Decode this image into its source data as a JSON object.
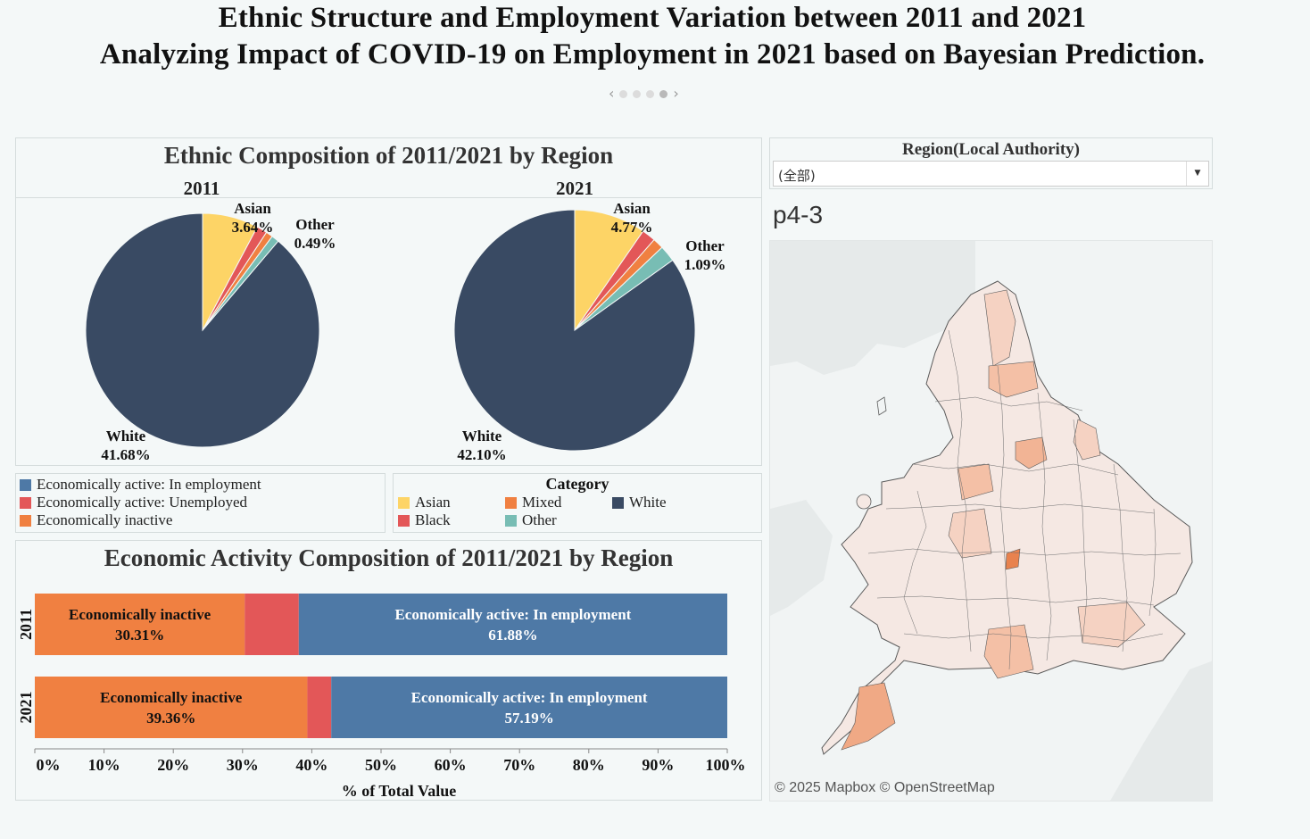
{
  "header": {
    "title_line1": "Ethnic Structure and Employment Variation between 2011 and 2021",
    "title_line2": "Analyzing Impact of COVID-19 on Employment in 2021 based on Bayesian Prediction."
  },
  "pager": {
    "prev_icon": "chevron-left-icon",
    "next_icon": "chevron-right-icon",
    "dots": 4,
    "active": 4
  },
  "colors": {
    "asian": "#fdd466",
    "black": "#e35758",
    "mixed": "#f08041",
    "white": "#394a63",
    "other": "#78bdb4",
    "in_employment": "#4e79a6",
    "unemployed": "#e35758",
    "inactive": "#f08041"
  },
  "pie_section": {
    "title": "Ethnic Composition of 2011/2021 by Region",
    "pies": [
      {
        "year": "2011",
        "slices": [
          {
            "category": "Asian",
            "value": 3.64
          },
          {
            "category": "Black",
            "value": 0.68
          },
          {
            "category": "Mixed",
            "value": 0.45
          },
          {
            "category": "Other",
            "value": 0.49
          },
          {
            "category": "White",
            "value": 41.68
          }
        ],
        "labels": {
          "asian": "Asian",
          "asian_pct": "3.64%",
          "other": "Other",
          "other_pct": "0.49%",
          "white": "White",
          "white_pct": "41.68%"
        }
      },
      {
        "year": "2021",
        "slices": [
          {
            "category": "Asian",
            "value": 4.77
          },
          {
            "category": "Black",
            "value": 0.92
          },
          {
            "category": "Mixed",
            "value": 0.72
          },
          {
            "category": "Other",
            "value": 1.09
          },
          {
            "category": "White",
            "value": 42.1
          }
        ],
        "labels": {
          "asian": "Asian",
          "asian_pct": "4.77%",
          "other": "Other",
          "other_pct": "1.09%",
          "white": "White",
          "white_pct": "42.10%"
        }
      }
    ]
  },
  "legend_econ": [
    {
      "label": "Economically active: In employment",
      "color": "#4e79a6"
    },
    {
      "label": "Economically active: Unemployed",
      "color": "#e35758"
    },
    {
      "label": "Economically inactive",
      "color": "#f08041"
    }
  ],
  "legend_category": {
    "title": "Category",
    "items": [
      {
        "label": "Asian",
        "color": "#fdd466"
      },
      {
        "label": "Mixed",
        "color": "#f08041"
      },
      {
        "label": "White",
        "color": "#394a63"
      },
      {
        "label": "Black",
        "color": "#e35758"
      },
      {
        "label": "Other",
        "color": "#78bdb4"
      }
    ]
  },
  "bar_section": {
    "title": "Economic Activity Composition of 2011/2021 by Region"
  },
  "chart_data": {
    "type": "bar",
    "orientation": "horizontal-stacked-100",
    "categories": [
      "2011",
      "2021"
    ],
    "series": [
      {
        "name": "Economically inactive",
        "values": [
          30.31,
          39.36
        ]
      },
      {
        "name": "Economically active: Unemployed",
        "values": [
          7.81,
          3.45
        ]
      },
      {
        "name": "Economically active: In employment",
        "values": [
          61.88,
          57.19
        ]
      }
    ],
    "bar_labels": [
      {
        "inactive": "Economically inactive",
        "inactive_pct": "30.31%",
        "emp": "Economically active: In employment",
        "emp_pct": "61.88%"
      },
      {
        "inactive": "Economically inactive",
        "inactive_pct": "39.36%",
        "emp": "Economically active: In employment",
        "emp_pct": "57.19%"
      }
    ],
    "xlabel": "% of Total Value",
    "xlim": [
      0,
      100
    ],
    "xticks": [
      "0%",
      "10%",
      "20%",
      "30%",
      "40%",
      "50%",
      "60%",
      "70%",
      "80%",
      "90%",
      "100%"
    ]
  },
  "filter": {
    "label": "Region(Local Authority)",
    "value": "(全部)",
    "caret_icon": "caret-down-icon"
  },
  "map": {
    "heading": "p4-3",
    "credit": "© 2025 Mapbox © OpenStreetMap"
  }
}
